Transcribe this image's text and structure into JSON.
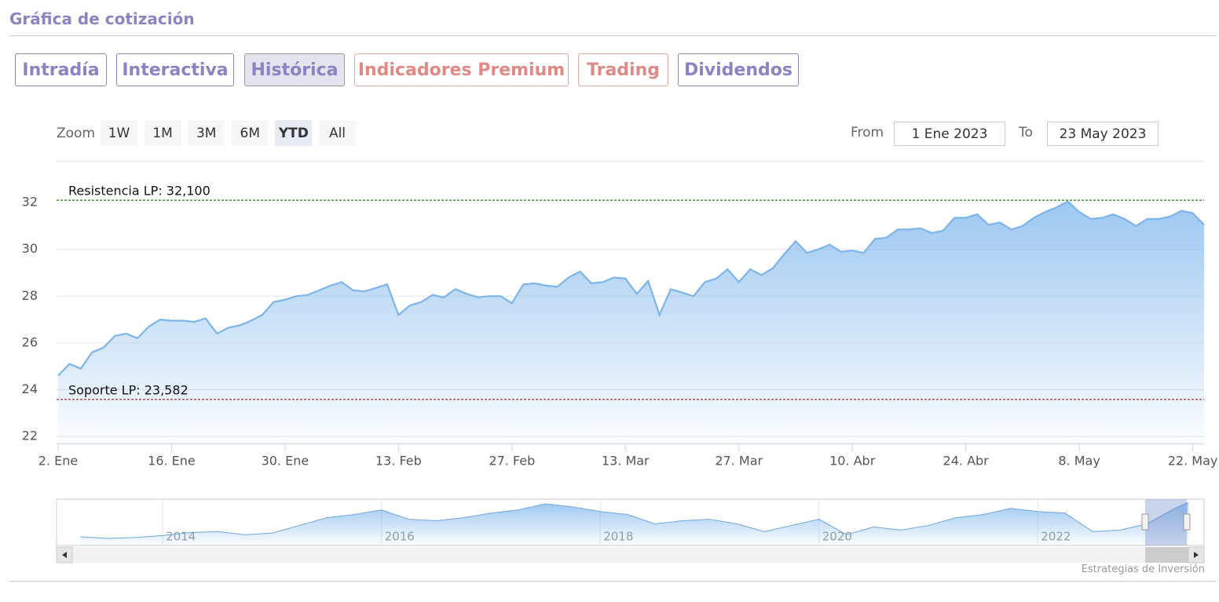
{
  "header": {
    "title": "Gráfica de cotización"
  },
  "tabs": [
    {
      "label": "Intradía",
      "style": "normal"
    },
    {
      "label": "Interactiva",
      "style": "normal"
    },
    {
      "label": "Histórica",
      "style": "active"
    },
    {
      "label": "Indicadores Premium",
      "style": "premium"
    },
    {
      "label": "Trading",
      "style": "premium"
    },
    {
      "label": "Dividendos",
      "style": "normal"
    }
  ],
  "zoom": {
    "label": "Zoom",
    "buttons": [
      "1W",
      "1M",
      "3M",
      "6M",
      "YTD",
      "All"
    ],
    "active": "YTD"
  },
  "range": {
    "from_label": "From",
    "from": "1 Ene 2023",
    "to_label": "To",
    "to": "23 May 2023"
  },
  "credit": "Estrategias de Inversión",
  "chart_data": {
    "type": "area",
    "categories": [
      "2. Ene",
      null,
      null,
      null,
      null,
      null,
      null,
      null,
      null,
      null,
      "16. Ene",
      null,
      null,
      null,
      null,
      null,
      null,
      null,
      null,
      null,
      "30. Ene",
      null,
      null,
      null,
      null,
      null,
      null,
      null,
      null,
      null,
      "13. Feb",
      null,
      null,
      null,
      null,
      null,
      null,
      null,
      null,
      null,
      "27. Feb",
      null,
      null,
      null,
      null,
      null,
      null,
      null,
      null,
      null,
      "13. Mar",
      null,
      null,
      null,
      null,
      null,
      null,
      null,
      null,
      null,
      "27. Mar",
      null,
      null,
      null,
      null,
      null,
      null,
      null,
      null,
      null,
      "10. Abr",
      null,
      null,
      null,
      null,
      null,
      null,
      null,
      null,
      null,
      "24. Abr",
      null,
      null,
      null,
      null,
      null,
      null,
      null,
      null,
      null,
      "8. May",
      null,
      null,
      null,
      null,
      null,
      null,
      null,
      null,
      null,
      "22. May",
      null
    ],
    "series": [
      {
        "color": "#7cb5ec",
        "values": [
          24.6,
          25.1,
          24.9,
          25.6,
          25.8,
          26.3,
          26.4,
          26.2,
          26.7,
          27.0,
          26.95,
          26.95,
          26.9,
          27.05,
          26.4,
          26.65,
          26.75,
          26.95,
          27.2,
          27.75,
          27.85,
          28.0,
          28.05,
          28.25,
          28.45,
          28.6,
          28.25,
          28.2,
          28.35,
          28.5,
          27.2,
          27.6,
          27.75,
          28.05,
          27.95,
          28.3,
          28.1,
          27.95,
          28.0,
          28.0,
          27.7,
          28.5,
          28.55,
          28.45,
          28.4,
          28.8,
          29.05,
          28.55,
          28.6,
          28.8,
          28.75,
          28.1,
          28.65,
          27.2,
          28.3,
          28.15,
          28.0,
          28.6,
          28.75,
          29.15,
          28.6,
          29.15,
          28.9,
          29.2,
          29.8,
          30.35,
          29.85,
          30.0,
          30.2,
          29.9,
          29.95,
          29.85,
          30.45,
          30.5,
          30.85,
          30.85,
          30.9,
          30.7,
          30.8,
          31.35,
          31.35,
          31.5,
          31.05,
          31.15,
          30.85,
          31.0,
          31.35,
          31.6,
          31.8,
          32.05,
          31.6,
          31.3,
          31.35,
          31.5,
          31.3,
          31.0,
          31.3,
          31.3,
          31.4,
          31.65,
          31.55,
          31.05
        ]
      }
    ],
    "ylim": [
      21.7,
      33.75
    ],
    "yticks": [
      22,
      24,
      26,
      28,
      30,
      32
    ],
    "grid": true,
    "plot_lines": [
      {
        "label": "Resistencia LP: 32,100",
        "value": 32.1,
        "color": "#1a7a1a"
      },
      {
        "label": "Soporte LP: 23,582",
        "value": 23.582,
        "color": "#8b1a1a"
      }
    ],
    "navigator": {
      "x": [
        2013.25,
        2013.5,
        2013.75,
        2014,
        2014.25,
        2014.5,
        2014.75,
        2015,
        2015.25,
        2015.5,
        2015.75,
        2016,
        2016.25,
        2016.5,
        2016.75,
        2017,
        2017.25,
        2017.5,
        2017.75,
        2018,
        2018.25,
        2018.5,
        2018.75,
        2019,
        2019.25,
        2019.5,
        2019.75,
        2020,
        2020.25,
        2020.5,
        2020.75,
        2021,
        2021.25,
        2021.5,
        2021.75,
        2022,
        2022.25,
        2022.5,
        2022.75,
        2023,
        2023.25,
        2023.375
      ],
      "values": [
        20.8,
        20.3,
        20.6,
        21.2,
        22.2,
        22.5,
        21.5,
        22.0,
        24.5,
        27.0,
        28.0,
        29.5,
        26.5,
        26.0,
        27.0,
        28.5,
        29.5,
        31.5,
        30.5,
        29.0,
        28.0,
        25.0,
        26.0,
        26.5,
        25.0,
        22.5,
        24.5,
        26.5,
        21.5,
        24.0,
        23.0,
        24.5,
        27.0,
        28.0,
        30.0,
        29.0,
        28.5,
        22.5,
        23.0,
        25.0,
        30.0,
        32.0
      ],
      "xlim": [
        2013.03,
        2023.52
      ],
      "xticks": [
        2014,
        2016,
        2018,
        2020,
        2022
      ],
      "ylim": [
        18,
        33
      ]
    }
  }
}
